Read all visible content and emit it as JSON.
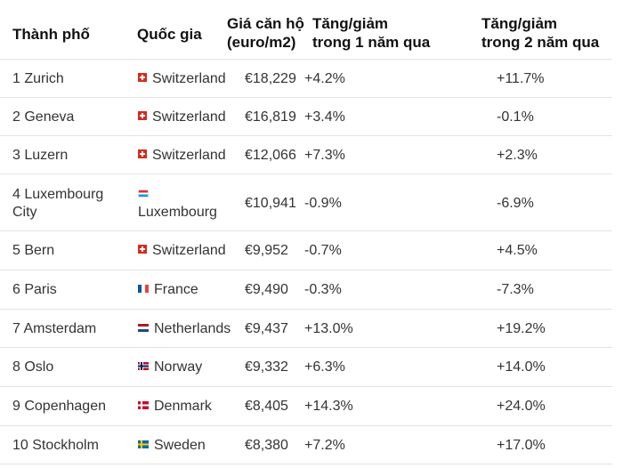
{
  "header": {
    "city": "Thành phố",
    "country": "Quốc gia",
    "price_line1": "Giá căn hộ",
    "price_line2": "(euro/m2)",
    "change_1y_line1": "Tăng/giảm",
    "change_1y_line2": "trong 1 năm qua",
    "change_2y_line1": "Tăng/giảm",
    "change_2y_line2": "trong 2 năm qua"
  },
  "rows": [
    {
      "city": "1 Zurich",
      "flag": "flag-switzerland-icon",
      "country": "Switzerland",
      "price": "€18,229",
      "change_1y": "+4.2%",
      "change_2y": "+11.7%"
    },
    {
      "city": "2 Geneva",
      "flag": "flag-switzerland-icon",
      "country": "Switzerland",
      "price": "€16,819",
      "change_1y": "+3.4%",
      "change_2y": "-0.1%"
    },
    {
      "city": "3 Luzern",
      "flag": "flag-switzerland-icon",
      "country": "Switzerland",
      "price": "€12,066",
      "change_1y": "+7.3%",
      "change_2y": "+2.3%"
    },
    {
      "city_line1": "4 Luxembourg",
      "city_line2": "City",
      "flag": "flag-luxembourg-icon",
      "country": "Luxembourg",
      "price": "€10,941",
      "change_1y": "-0.9%",
      "change_2y": "-6.9%"
    },
    {
      "city": "5 Bern",
      "flag": "flag-switzerland-icon",
      "country": "Switzerland",
      "price": "€9,952",
      "change_1y": "-0.7%",
      "change_2y": "+4.5%"
    },
    {
      "city": "6 Paris",
      "flag": "flag-france-icon",
      "country": "France",
      "price": "€9,490",
      "change_1y": "-0.3%",
      "change_2y": "-7.3%"
    },
    {
      "city": "7 Amsterdam",
      "flag": "flag-netherlands-icon",
      "country": "Netherlands",
      "price": "€9,437",
      "change_1y": "+13.0%",
      "change_2y": "+19.2%"
    },
    {
      "city": "8 Oslo",
      "flag": "flag-norway-icon",
      "country": "Norway",
      "price": "€9,332",
      "change_1y": "+6.3%",
      "change_2y": "+14.0%"
    },
    {
      "city": "9 Copenhagen",
      "flag": "flag-denmark-icon",
      "country": "Denmark",
      "price": "€8,405",
      "change_1y": "+14.3%",
      "change_2y": "+24.0%"
    },
    {
      "city": "10 Stockholm",
      "flag": "flag-sweden-icon",
      "country": "Sweden",
      "price": "€8,380",
      "change_1y": "+7.2%",
      "change_2y": "+17.0%"
    }
  ]
}
